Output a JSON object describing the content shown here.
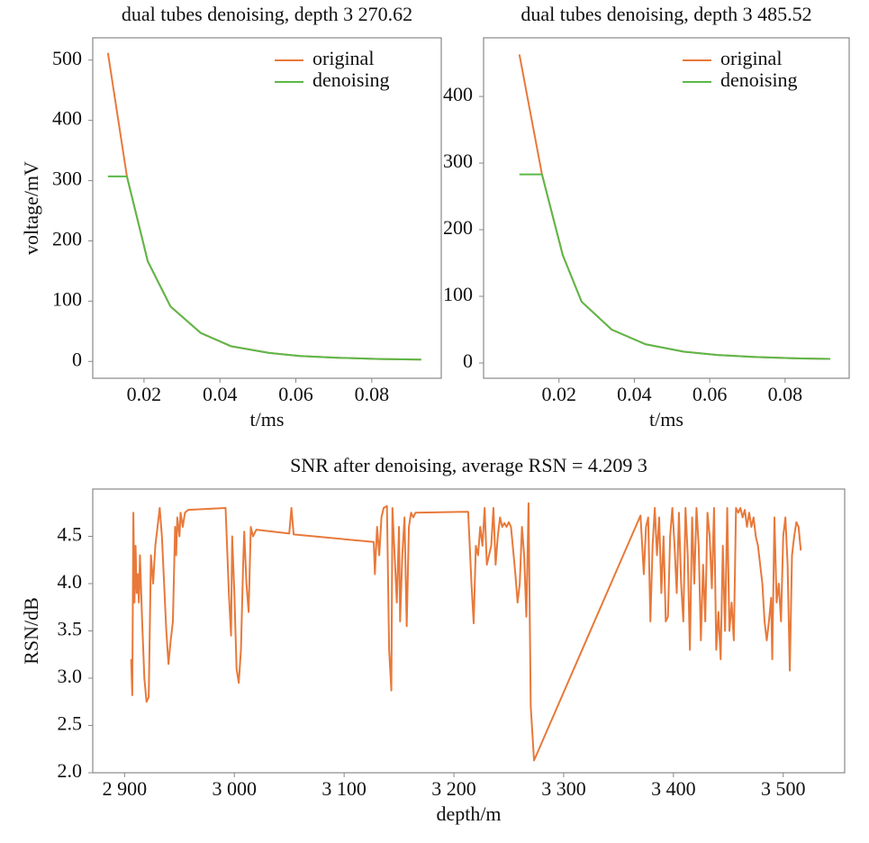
{
  "chart_data": [
    {
      "type": "line",
      "title": "dual tubes denoising, depth 3 270.62",
      "xlabel": "t/ms",
      "ylabel": "voltage/mV",
      "x": [
        0.0105,
        0.0155,
        0.021,
        0.027,
        0.035,
        0.043,
        0.053,
        0.061,
        0.071,
        0.082,
        0.093
      ],
      "series": [
        {
          "name": "original",
          "color": "#e8793a",
          "values": [
            512,
            307,
            166,
            91,
            47,
            25,
            14,
            9,
            6,
            4,
            3
          ]
        },
        {
          "name": "denoising",
          "color": "#5cb84a",
          "values": [
            307,
            307,
            166,
            91,
            47,
            25,
            14,
            9,
            6,
            4,
            3
          ]
        }
      ],
      "xlim": [
        0.0065,
        0.0983
      ],
      "xticks": [
        0.02,
        0.04,
        0.06,
        0.08
      ],
      "ylim": [
        -28,
        537
      ],
      "yticks": [
        0,
        100,
        200,
        300,
        400,
        500
      ],
      "legend": "upper right"
    },
    {
      "type": "line",
      "title": "dual tubes denoising, depth 3 485.52",
      "xlabel": "t/ms",
      "x": [
        0.0095,
        0.0155,
        0.021,
        0.026,
        0.034,
        0.043,
        0.053,
        0.062,
        0.072,
        0.082,
        0.092
      ],
      "series": [
        {
          "name": "original",
          "color": "#e8793a",
          "values": [
            463,
            283,
            162,
            92,
            50,
            28,
            17,
            12,
            9,
            7,
            6
          ]
        },
        {
          "name": "denoising",
          "color": "#5cb84a",
          "values": [
            283,
            283,
            162,
            92,
            50,
            28,
            17,
            12,
            9,
            7,
            6
          ]
        }
      ],
      "xlim": [
        0,
        0.097
      ],
      "xticks": [
        0.02,
        0.04,
        0.06,
        0.08
      ],
      "ylim": [
        -23,
        488
      ],
      "yticks": [
        0,
        100,
        200,
        300,
        400
      ],
      "legend": "upper right"
    },
    {
      "type": "line",
      "title": "SNR after denoising, average RSN = 4.209 3",
      "xlabel": "depth/m",
      "ylabel": "RSN/dB",
      "x": [
        2906,
        2907,
        2908,
        2909,
        2910,
        2911,
        2912,
        2913,
        2914,
        2916,
        2918,
        2920,
        2922,
        2924,
        2926,
        2928,
        2930,
        2932,
        2934,
        2936,
        2938,
        2940,
        2942,
        2944,
        2946,
        2947,
        2948,
        2950,
        2951,
        2953,
        2955,
        2958,
        2992,
        2995,
        2997,
        2998,
        3000,
        3002,
        3004,
        3006,
        3008,
        3009,
        3011,
        3013,
        3015,
        3017,
        3020,
        3050,
        3052,
        3054,
        3127,
        3128,
        3130,
        3132,
        3134,
        3136,
        3139,
        3141,
        3143,
        3144,
        3146,
        3148,
        3150,
        3151,
        3153,
        3155,
        3157,
        3159,
        3161,
        3163,
        3165,
        3213,
        3216,
        3218,
        3220,
        3222,
        3224,
        3226,
        3228,
        3230,
        3232,
        3234,
        3236,
        3238,
        3240,
        3242,
        3244,
        3246,
        3248,
        3250,
        3252,
        3256,
        3258,
        3260,
        3262,
        3264,
        3266,
        3268,
        3270,
        3273,
        3370,
        3373,
        3375,
        3377,
        3379,
        3381,
        3383,
        3385,
        3387,
        3389,
        3391,
        3393,
        3395,
        3397,
        3399,
        3401,
        3403,
        3405,
        3407,
        3409,
        3411,
        3413,
        3415,
        3417,
        3419,
        3421,
        3423,
        3425,
        3427,
        3429,
        3431,
        3433,
        3435,
        3437,
        3439,
        3441,
        3443,
        3445,
        3447,
        3449,
        3451,
        3453,
        3455,
        3457,
        3459,
        3461,
        3463,
        3465,
        3467,
        3469,
        3471,
        3473,
        3475,
        3477,
        3479,
        3481,
        3483,
        3485,
        3487,
        3489,
        3490,
        3492,
        3494,
        3496,
        3498,
        3500,
        3502,
        3504,
        3506,
        3508,
        3510,
        3512,
        3514,
        3516
      ],
      "series": [
        {
          "color": "#e8793a",
          "values": [
            3.2,
            2.82,
            4.75,
            3.8,
            4.4,
            3.9,
            4.1,
            3.8,
            4.3,
            3.6,
            3.0,
            2.75,
            2.8,
            4.3,
            4.0,
            4.4,
            4.6,
            4.8,
            4.5,
            4.0,
            3.5,
            3.15,
            3.4,
            3.6,
            4.6,
            4.3,
            4.7,
            4.5,
            4.75,
            4.6,
            4.75,
            4.78,
            4.8,
            3.9,
            3.45,
            4.5,
            3.9,
            3.1,
            2.95,
            3.3,
            4.2,
            4.55,
            4.0,
            3.7,
            4.6,
            4.5,
            4.57,
            4.53,
            4.8,
            4.52,
            4.44,
            4.1,
            4.6,
            4.3,
            4.7,
            4.8,
            4.82,
            3.3,
            2.87,
            4.8,
            4.3,
            3.8,
            4.6,
            3.6,
            4.3,
            4.7,
            3.55,
            4.6,
            4.75,
            4.7,
            4.75,
            4.76,
            4.0,
            3.58,
            4.4,
            4.3,
            4.6,
            4.4,
            4.8,
            4.2,
            4.3,
            4.4,
            4.8,
            4.2,
            4.5,
            4.7,
            4.6,
            4.64,
            4.6,
            4.65,
            4.6,
            4.1,
            3.8,
            4.0,
            4.6,
            4.3,
            3.65,
            4.85,
            2.7,
            2.13,
            4.72,
            4.1,
            4.6,
            4.7,
            3.6,
            4.4,
            4.8,
            4.3,
            4.7,
            3.9,
            4.5,
            3.6,
            3.65,
            4.5,
            4.8,
            4.4,
            3.9,
            4.75,
            4.0,
            3.6,
            4.8,
            4.3,
            3.3,
            4.7,
            4.0,
            4.8,
            4.4,
            3.4,
            4.2,
            3.6,
            4.75,
            4.5,
            3.95,
            4.8,
            3.3,
            3.7,
            3.2,
            4.4,
            3.5,
            4.8,
            3.5,
            3.8,
            3.4,
            4.8,
            4.75,
            4.8,
            4.7,
            4.78,
            4.6,
            4.75,
            4.6,
            4.7,
            4.5,
            4.4,
            4.2,
            4.0,
            3.6,
            3.4,
            3.6,
            3.85,
            3.2,
            4.7,
            3.8,
            4.0,
            3.6,
            4.5,
            4.7,
            4.2,
            3.08,
            4.3,
            4.5,
            4.65,
            4.6,
            4.35
          ]
        }
      ],
      "xlim": [
        2871,
        3556
      ],
      "xticks": [
        {
          "value": 2900,
          "label": "2 900"
        },
        {
          "value": 3000,
          "label": "3 000"
        },
        {
          "value": 3100,
          "label": "3 100"
        },
        {
          "value": 3200,
          "label": "3 200"
        },
        {
          "value": 3300,
          "label": "3 300"
        },
        {
          "value": 3400,
          "label": "3 400"
        },
        {
          "value": 3500,
          "label": "3 500"
        }
      ],
      "ylim": [
        2,
        5
      ],
      "yticks": [
        {
          "value": 2,
          "label": "2.0"
        },
        2.5,
        {
          "value": 3,
          "label": "3.0"
        },
        3.5,
        {
          "value": 4,
          "label": "4.0"
        },
        4.5
      ]
    }
  ]
}
